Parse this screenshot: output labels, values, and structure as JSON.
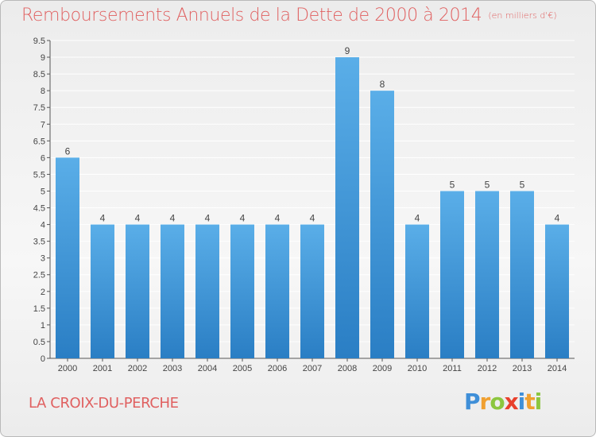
{
  "header": {
    "title": "Remboursements Annuels de la Dette de 2000 à 2014",
    "unit": "(en milliers d'€)"
  },
  "footer": {
    "place": "LA CROIX-DU-PERCHE",
    "logo": "Proxiti"
  },
  "colors": {
    "bar_top": "#5aaee8",
    "bar_bottom": "#2a7ec4",
    "title": "#e06060",
    "axis_text": "#444444",
    "grid": "#ffffff"
  },
  "chart_data": {
    "type": "bar",
    "categories": [
      "2000",
      "2001",
      "2002",
      "2003",
      "2004",
      "2005",
      "2006",
      "2007",
      "2008",
      "2009",
      "2010",
      "2011",
      "2012",
      "2013",
      "2014"
    ],
    "values": [
      6,
      4,
      4,
      4,
      4,
      4,
      4,
      4,
      9,
      8,
      4,
      5,
      5,
      5,
      4
    ],
    "data_labels": [
      "6",
      "4",
      "4",
      "4",
      "4",
      "4",
      "4",
      "4",
      "9",
      "8",
      "4",
      "5",
      "5",
      "5",
      "4"
    ],
    "title": "Remboursements Annuels de la Dette de 2000 à 2014",
    "xlabel": "",
    "ylabel": "",
    "ylim": [
      0,
      9.5
    ],
    "yticks": [
      "0",
      "0.5",
      "1",
      "1.5",
      "2",
      "2.5",
      "3",
      "3.5",
      "4",
      "4.5",
      "5",
      "5.5",
      "6",
      "6.5",
      "7",
      "7.5",
      "8",
      "8.5",
      "9",
      "9.5"
    ],
    "grid": true,
    "legend": "none"
  }
}
